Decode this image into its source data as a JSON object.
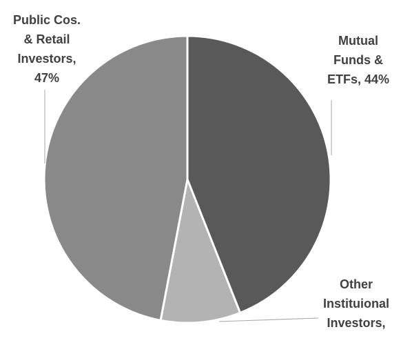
{
  "chart_data": {
    "type": "pie",
    "values": [
      44,
      9,
      47
    ],
    "value_labels": [
      "Mutual Funds & ETFs, 44%",
      "Other Instituional Investors,",
      "Public Cos. & Retail Investors, 47%"
    ],
    "colors": [
      "#595959",
      "#b3b3b3",
      "#898989"
    ],
    "start_angle": 0,
    "direction": "clockwise"
  }
}
